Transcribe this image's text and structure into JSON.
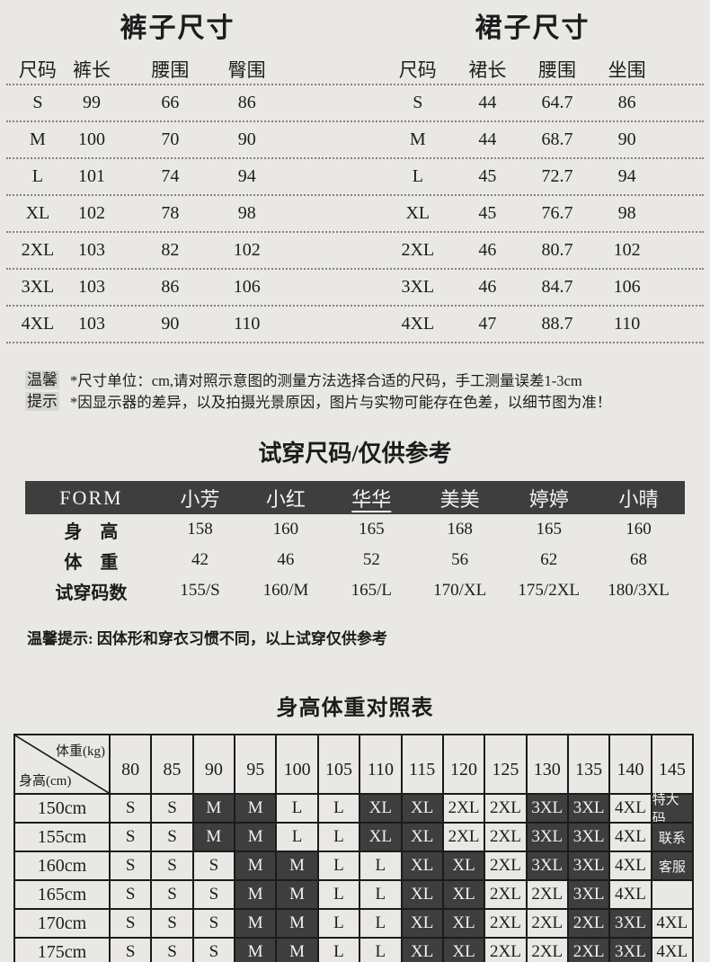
{
  "colors": {
    "background": "#e9e8e4",
    "dark_cell": "#3e3e3e",
    "text": "#1c1c1c",
    "border": "#1b1b1b"
  },
  "pants": {
    "title": "裤子尺寸",
    "headers": [
      "尺码",
      "裤长",
      "腰围",
      "臀围"
    ],
    "rows": [
      [
        "S",
        "99",
        "66",
        "86"
      ],
      [
        "M",
        "100",
        "70",
        "90"
      ],
      [
        "L",
        "101",
        "74",
        "94"
      ],
      [
        "XL",
        "102",
        "78",
        "98"
      ],
      [
        "2XL",
        "103",
        "82",
        "102"
      ],
      [
        "3XL",
        "103",
        "86",
        "106"
      ],
      [
        "4XL",
        "103",
        "90",
        "110"
      ]
    ]
  },
  "skirt": {
    "title": "裙子尺寸",
    "headers": [
      "尺码",
      "裙长",
      "腰围",
      "坐围"
    ],
    "rows": [
      [
        "S",
        "44",
        "64.7",
        "86"
      ],
      [
        "M",
        "44",
        "68.7",
        "90"
      ],
      [
        "L",
        "45",
        "72.7",
        "94"
      ],
      [
        "XL",
        "45",
        "76.7",
        "98"
      ],
      [
        "2XL",
        "46",
        "80.7",
        "102"
      ],
      [
        "3XL",
        "46",
        "84.7",
        "106"
      ],
      [
        "4XL",
        "47",
        "88.7",
        "110"
      ]
    ]
  },
  "tips": {
    "badge": [
      "温馨",
      "提示"
    ],
    "lines": [
      "*尺寸单位：cm,请对照示意图的测量方法选择合适的尺码，手工测量误差1-3cm",
      "*因显示器的差异，以及拍摄光景原因，图片与实物可能存在色差，以细节图为准！"
    ]
  },
  "fitting": {
    "title": "试穿尺码/仅供参考",
    "header": [
      {
        "label": "FORM"
      },
      {
        "label": "小芳"
      },
      {
        "label": "小红"
      },
      {
        "label": "华华",
        "underline": true
      },
      {
        "label": "美美"
      },
      {
        "label": "婷婷"
      },
      {
        "label": "小晴"
      }
    ],
    "rows": [
      {
        "label": "身　高",
        "values": [
          "158",
          "160",
          "165",
          "168",
          "165",
          "160"
        ]
      },
      {
        "label": "体　重",
        "values": [
          "42",
          "46",
          "52",
          "56",
          "62",
          "68"
        ]
      },
      {
        "label": "试穿码数",
        "values": [
          "155/S",
          "160/M",
          "165/L",
          "170/XL",
          "175/2XL",
          "180/3XL"
        ]
      }
    ],
    "note": "温馨提示: 因体形和穿衣习惯不同，以上试穿仅供参考"
  },
  "size_chart": {
    "title": "身高体重对照表",
    "corner": {
      "top": "体重(kg)",
      "bottom": "身高(cm)"
    },
    "weights": [
      "80",
      "85",
      "90",
      "95",
      "100",
      "105",
      "110",
      "115",
      "120",
      "125",
      "130",
      "135",
      "140",
      "145"
    ],
    "rows": [
      {
        "height": "150cm",
        "cells": [
          {
            "t": "S"
          },
          {
            "t": "S"
          },
          {
            "t": "M",
            "d": true
          },
          {
            "t": "M",
            "d": true
          },
          {
            "t": "L"
          },
          {
            "t": "L"
          },
          {
            "t": "XL",
            "d": true
          },
          {
            "t": "XL",
            "d": true
          },
          {
            "t": "2XL"
          },
          {
            "t": "2XL"
          },
          {
            "t": "3XL",
            "d": true
          },
          {
            "t": "3XL",
            "d": true
          },
          {
            "t": "4XL"
          },
          {
            "t": "特大码",
            "d": true,
            "small": true
          }
        ]
      },
      {
        "height": "155cm",
        "cells": [
          {
            "t": "S"
          },
          {
            "t": "S"
          },
          {
            "t": "M",
            "d": true
          },
          {
            "t": "M",
            "d": true
          },
          {
            "t": "L"
          },
          {
            "t": "L"
          },
          {
            "t": "XL",
            "d": true
          },
          {
            "t": "XL",
            "d": true
          },
          {
            "t": "2XL"
          },
          {
            "t": "2XL"
          },
          {
            "t": "3XL",
            "d": true
          },
          {
            "t": "3XL",
            "d": true
          },
          {
            "t": "4XL"
          },
          {
            "t": "联系",
            "d": true,
            "small": true
          }
        ]
      },
      {
        "height": "160cm",
        "cells": [
          {
            "t": "S"
          },
          {
            "t": "S"
          },
          {
            "t": "S"
          },
          {
            "t": "M",
            "d": true
          },
          {
            "t": "M",
            "d": true
          },
          {
            "t": "L"
          },
          {
            "t": "L"
          },
          {
            "t": "XL",
            "d": true
          },
          {
            "t": "XL",
            "d": true
          },
          {
            "t": "2XL"
          },
          {
            "t": "3XL",
            "d": true
          },
          {
            "t": "3XL",
            "d": true
          },
          {
            "t": "4XL"
          },
          {
            "t": "客服",
            "d": true,
            "small": true
          }
        ]
      },
      {
        "height": "165cm",
        "cells": [
          {
            "t": "S"
          },
          {
            "t": "S"
          },
          {
            "t": "S"
          },
          {
            "t": "M",
            "d": true
          },
          {
            "t": "M",
            "d": true
          },
          {
            "t": "L"
          },
          {
            "t": "L"
          },
          {
            "t": "XL",
            "d": true
          },
          {
            "t": "XL",
            "d": true
          },
          {
            "t": "2XL"
          },
          {
            "t": "2XL"
          },
          {
            "t": "3XL",
            "d": true
          },
          {
            "t": "4XL"
          },
          {
            "t": ""
          }
        ]
      },
      {
        "height": "170cm",
        "cells": [
          {
            "t": "S"
          },
          {
            "t": "S"
          },
          {
            "t": "S"
          },
          {
            "t": "M",
            "d": true
          },
          {
            "t": "M",
            "d": true
          },
          {
            "t": "L"
          },
          {
            "t": "L"
          },
          {
            "t": "XL",
            "d": true
          },
          {
            "t": "XL",
            "d": true
          },
          {
            "t": "2XL"
          },
          {
            "t": "2XL"
          },
          {
            "t": "2XL",
            "d": true
          },
          {
            "t": "3XL",
            "d": true
          },
          {
            "t": "4XL"
          }
        ]
      },
      {
        "height": "175cm",
        "cells": [
          {
            "t": "S"
          },
          {
            "t": "S"
          },
          {
            "t": "S"
          },
          {
            "t": "M",
            "d": true
          },
          {
            "t": "M",
            "d": true
          },
          {
            "t": "L"
          },
          {
            "t": "L"
          },
          {
            "t": "XL",
            "d": true
          },
          {
            "t": "XL",
            "d": true
          },
          {
            "t": "2XL"
          },
          {
            "t": "2XL"
          },
          {
            "t": "2XL",
            "d": true
          },
          {
            "t": "3XL",
            "d": true
          },
          {
            "t": "4XL"
          }
        ]
      }
    ]
  }
}
